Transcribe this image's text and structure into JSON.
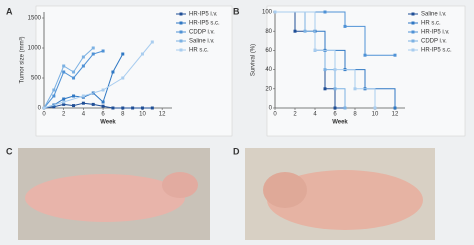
{
  "chart_data": [
    {
      "type": "line",
      "label": "A",
      "ylabel": "Tumor size (mm³)",
      "xlabel": "Week",
      "xlim": [
        0,
        13
      ],
      "xticks": [
        0,
        2,
        4,
        6,
        8,
        10,
        12
      ],
      "ylim": [
        0,
        1600
      ],
      "yticks": [
        0,
        500,
        1000,
        1500
      ],
      "legend": "right",
      "series": [
        {
          "name": "HR-IP5 i.v.",
          "color": "#1f4e96",
          "x": [
            0,
            1,
            2,
            3,
            4,
            5,
            6,
            7,
            8,
            9,
            10,
            11
          ],
          "values": [
            0,
            20,
            60,
            40,
            80,
            60,
            30,
            0,
            0,
            0,
            0,
            0
          ]
        },
        {
          "name": "HR-IP5 s.c.",
          "color": "#2f78c4",
          "x": [
            0,
            1,
            2,
            3,
            4,
            5,
            6,
            7,
            8
          ],
          "values": [
            0,
            50,
            150,
            200,
            180,
            250,
            100,
            600,
            900
          ]
        },
        {
          "name": "CDDP i.v.",
          "color": "#4f92d6",
          "x": [
            0,
            1,
            2,
            3,
            4,
            5,
            6
          ],
          "values": [
            0,
            200,
            600,
            500,
            700,
            900,
            950
          ]
        },
        {
          "name": "Saline i.v.",
          "color": "#7bb1e3",
          "x": [
            0,
            1,
            2,
            3,
            4,
            5
          ],
          "values": [
            0,
            300,
            700,
            600,
            850,
            1000
          ]
        },
        {
          "name": "HR s.c.",
          "color": "#a9cdef",
          "x": [
            0,
            2,
            4,
            6,
            8,
            10,
            11
          ],
          "values": [
            0,
            100,
            200,
            300,
            500,
            900,
            1100
          ]
        }
      ]
    },
    {
      "type": "line",
      "drawstyle": "steps-post",
      "label": "B",
      "ylabel": "Survival (%)",
      "xlabel": "Week",
      "xlim": [
        0,
        13
      ],
      "xticks": [
        0,
        2,
        4,
        6,
        8,
        10,
        12
      ],
      "ylim": [
        0,
        100
      ],
      "yticks": [
        0,
        20,
        40,
        60,
        80,
        100
      ],
      "legend": "right",
      "series": [
        {
          "name": "Saline i.v.",
          "color": "#1f4e96",
          "x": [
            0,
            2,
            4,
            5,
            6,
            7
          ],
          "values": [
            100,
            80,
            60,
            20,
            0,
            0
          ]
        },
        {
          "name": "HR s.c.",
          "color": "#2f78c4",
          "x": [
            0,
            4,
            5,
            7,
            9,
            12
          ],
          "values": [
            100,
            80,
            60,
            40,
            20,
            0
          ]
        },
        {
          "name": "HR-IP5 i.v.",
          "color": "#4f92d6",
          "x": [
            0,
            5,
            7,
            9,
            12
          ],
          "values": [
            100,
            100,
            85,
            55,
            55
          ]
        },
        {
          "name": "CDDP i.v.",
          "color": "#7bb1e3",
          "x": [
            0,
            3,
            4,
            5,
            6,
            7
          ],
          "values": [
            100,
            80,
            60,
            40,
            20,
            0
          ]
        },
        {
          "name": "HR-IP5 s.c.",
          "color": "#a9cdef",
          "x": [
            0,
            4,
            6,
            8,
            10
          ],
          "values": [
            100,
            60,
            40,
            20,
            0
          ]
        }
      ]
    }
  ],
  "photos": [
    {
      "label": "C"
    },
    {
      "label": "D"
    }
  ]
}
